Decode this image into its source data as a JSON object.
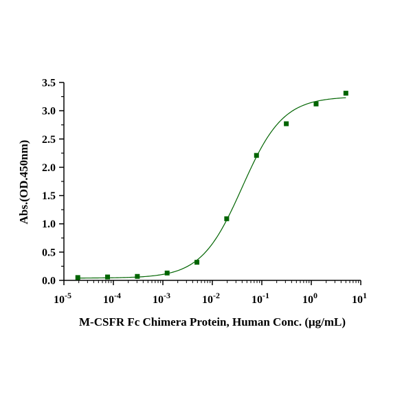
{
  "chart_data": {
    "type": "scatter",
    "xlabel": "M-CSFR Fc Chimera Protein, Human Conc. (μg/mL)",
    "ylabel": "Abs.(OD.450nm)",
    "x_scale": "log",
    "xlim": [
      1e-05,
      10
    ],
    "ylim": [
      0,
      3.5
    ],
    "x_ticks": [
      1e-05,
      0.0001,
      0.001,
      0.01,
      0.1,
      1,
      10
    ],
    "x_tick_base": "10",
    "x_tick_exponents": [
      "-5",
      "-4",
      "-3",
      "-2",
      "-1",
      "0",
      "1"
    ],
    "y_ticks": [
      0.0,
      0.5,
      1.0,
      1.5,
      2.0,
      2.5,
      3.0,
      3.5
    ],
    "y_tick_labels": [
      "0.0",
      "0.5",
      "1.0",
      "1.5",
      "2.0",
      "2.5",
      "3.0",
      "3.5"
    ],
    "grid": false,
    "legend": "none",
    "series": [
      {
        "x": [
          1.91e-05,
          7.63e-05,
          0.000305,
          0.00122,
          0.00488,
          0.0195,
          0.0781,
          0.3125,
          1.25,
          5.0
        ],
        "y": [
          0.05,
          0.06,
          0.07,
          0.13,
          0.32,
          1.09,
          2.21,
          2.77,
          3.12,
          3.31
        ],
        "marker": "square",
        "color": "#006400"
      }
    ],
    "fit_curve": {
      "model": "4PL",
      "bottom": 0.04,
      "top": 3.25,
      "ec50": 0.04,
      "hill": 1.05,
      "color": "#006400"
    }
  }
}
